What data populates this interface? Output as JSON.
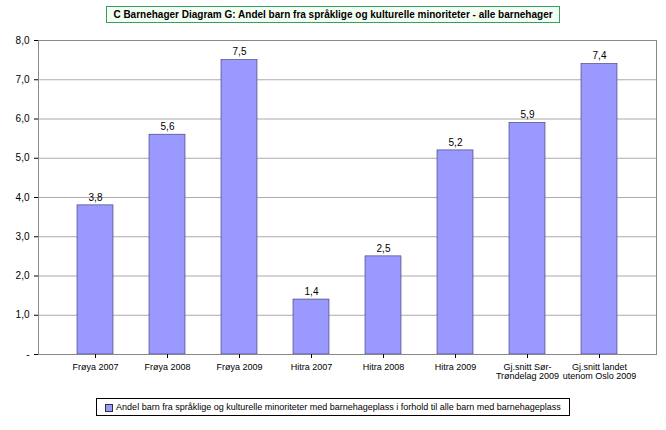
{
  "chart_data": {
    "type": "bar",
    "title": "C Barnehager Diagram G: Andel barn fra språklige og kulturelle minoriteter  - alle barnehager",
    "categories": [
      "Frøya 2007",
      "Frøya 2008",
      "Frøya 2009",
      "Hitra 2007",
      "Hitra 2008",
      "Hitra 2009",
      "Gj.snitt Sør-\nTrøndelag 2009",
      "Gj.snitt landet\nutenom Oslo 2009"
    ],
    "series": [
      {
        "name": "Andel barn fra språklige og kulturelle minoriteter med barnehageplass i forhold til alle barn med barnehageplass",
        "color": "#9999ff",
        "values": [
          3.8,
          5.6,
          7.5,
          1.4,
          2.5,
          5.2,
          5.9,
          7.4
        ],
        "value_labels": [
          "3,8",
          "5,6",
          "7,5",
          "1,4",
          "2,5",
          "5,2",
          "5,9",
          "7,4"
        ]
      }
    ],
    "ylim": [
      0,
      8
    ],
    "yticks": [
      {
        "value": 0,
        "label": "-"
      },
      {
        "value": 1,
        "label": "1,0"
      },
      {
        "value": 2,
        "label": "2,0"
      },
      {
        "value": 3,
        "label": "3,0"
      },
      {
        "value": 4,
        "label": "4,0"
      },
      {
        "value": 5,
        "label": "5,0"
      },
      {
        "value": 6,
        "label": "6,0"
      },
      {
        "value": 7,
        "label": "7,0"
      },
      {
        "value": 8,
        "label": "8,0"
      }
    ],
    "grid": true,
    "data_labels": true,
    "legend": "bottom"
  }
}
